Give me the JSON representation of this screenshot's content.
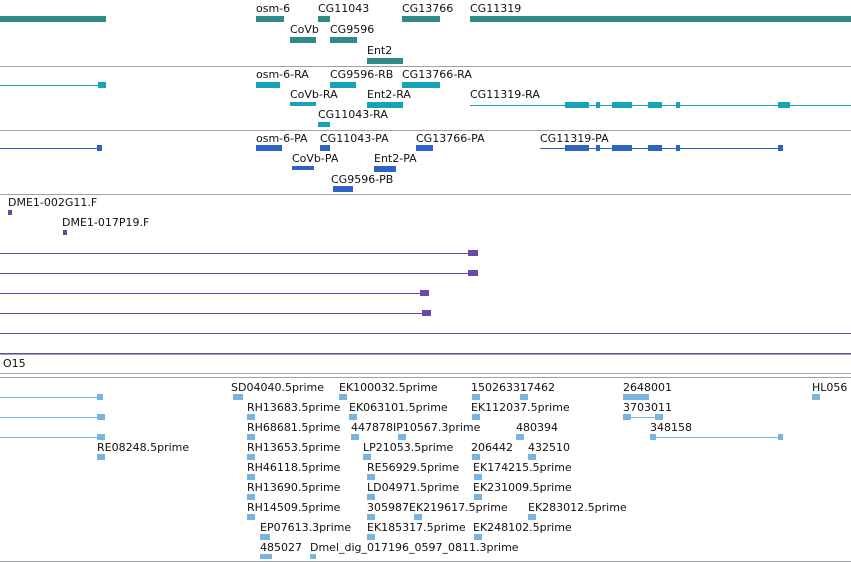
{
  "colors": {
    "gene": "#2f8a8a",
    "ncbi_transcript": "#16a3b8",
    "flybase_transcript": "#2e62c4",
    "bac": "#6a48a8",
    "est": "#78b4de",
    "separator": "#9aa2ad"
  },
  "genes": {
    "osm6": "osm-6",
    "cg11043": "CG11043",
    "cg13766": "CG13766",
    "cg11319": "CG11319",
    "covb": "CoVb",
    "cg9596": "CG9596",
    "ent2": "Ent2"
  },
  "transcripts_ra": {
    "osm6": "osm-6-RA",
    "cg9596": "CG9596-RB",
    "cg13766": "CG13766-RA",
    "covb": "CoVb-RA",
    "ent2": "Ent2-RA",
    "cg11319": "CG11319-RA",
    "cg11043": "CG11043-RA"
  },
  "transcripts_pa": {
    "osm6": "osm-6-PA",
    "cg11043": "CG11043-PA",
    "cg13766": "CG13766-PA",
    "cg11319": "CG11319-PA",
    "covb": "CoVb-PA",
    "ent2": "Ent2-PA",
    "cg9596": "CG9596-PB"
  },
  "bacs": {
    "a": "DME1-002G11.F",
    "b": "DME1-017P19.F"
  },
  "section_label": "O15",
  "ests": {
    "r1": [
      "SD04040.5prime",
      "EK100032.5prime",
      "150263317462",
      "2648001",
      "HL056"
    ],
    "r2": [
      "RH13683.5prime",
      "EK063101.5prime",
      "EK112037.5prime",
      "3703011"
    ],
    "r3": [
      "RH68681.5prime",
      "447878IP10567.3prime",
      "480394",
      "348158"
    ],
    "r4": [
      "RE08248.5prime",
      "RH13653.5prime",
      "LP21053.5prime",
      "206442",
      "432510"
    ],
    "r5": [
      "RH46118.5prime",
      "RE56929.5prime",
      "EK174215.5prime"
    ],
    "r6": [
      "RH13690.5prime",
      "LD04971.5prime",
      "EK231009.5prime"
    ],
    "r7": [
      "RH14509.5prime",
      "305987EK219617.5prime",
      "EK283012.5prime"
    ],
    "r8": [
      "EP07613.3prime",
      "EK185317.5prime",
      "EK248102.5prime"
    ],
    "r9": [
      "485027",
      "Dmel_dig_017196_0597_0811.3prime"
    ]
  }
}
